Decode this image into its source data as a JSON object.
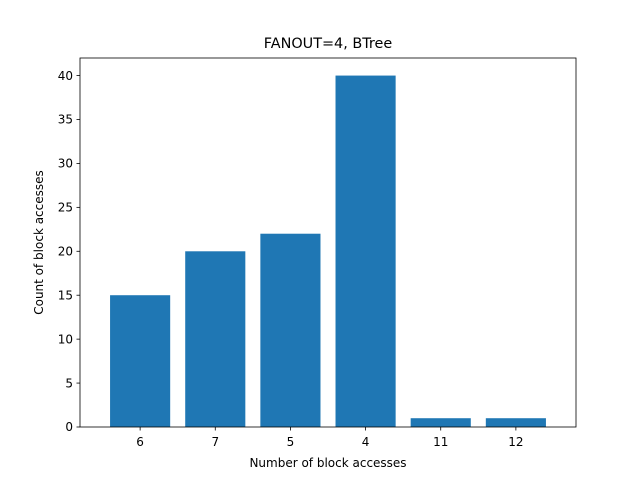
{
  "chart_data": {
    "type": "bar",
    "title": "FANOUT=4, BTree",
    "xlabel": "Number of block accesses",
    "ylabel": "Count of block accesses",
    "categories": [
      "6",
      "7",
      "5",
      "4",
      "11",
      "12"
    ],
    "values": [
      15,
      20,
      22,
      40,
      1,
      1
    ],
    "ylim": [
      0,
      42
    ],
    "yticks": [
      0,
      5,
      10,
      15,
      20,
      25,
      30,
      35,
      40
    ],
    "grid": false,
    "bar_color": "#1f77b4"
  }
}
